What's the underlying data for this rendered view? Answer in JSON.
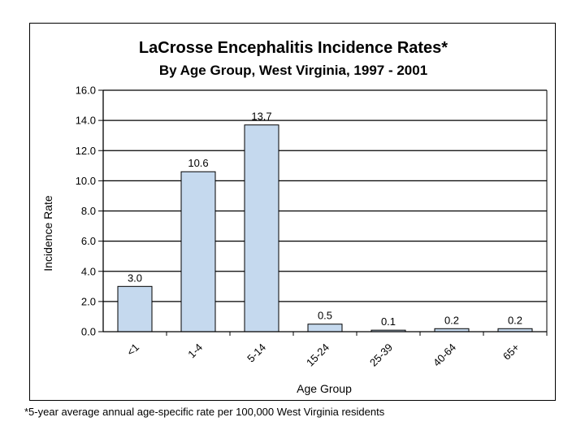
{
  "chart_data": {
    "type": "bar",
    "title": "LaCrosse Encephalitis Incidence Rates*",
    "subtitle": "By Age Group, West Virginia, 1997 - 2001",
    "xlabel": "Age Group",
    "ylabel": "Incidence Rate",
    "categories": [
      "<1",
      "1-4",
      "5-14",
      "15-24",
      "25-39",
      "40-64",
      "65+"
    ],
    "values": [
      3.0,
      10.6,
      13.7,
      0.5,
      0.1,
      0.2,
      0.2
    ],
    "value_labels": [
      "3.0",
      "10.6",
      "13.7",
      "0.5",
      "0.1",
      "0.2",
      "0.2"
    ],
    "y_ticks": [
      "0.0",
      "2.0",
      "4.0",
      "6.0",
      "8.0",
      "10.0",
      "12.0",
      "14.0",
      "16.0"
    ],
    "ylim": [
      0,
      16
    ],
    "grid": true,
    "legend": "none",
    "bar_color": "#c5d9ee",
    "bar_edge_color": "#000000"
  },
  "footnote": "*5-year average annual age-specific rate per 100,000 West Virginia residents"
}
